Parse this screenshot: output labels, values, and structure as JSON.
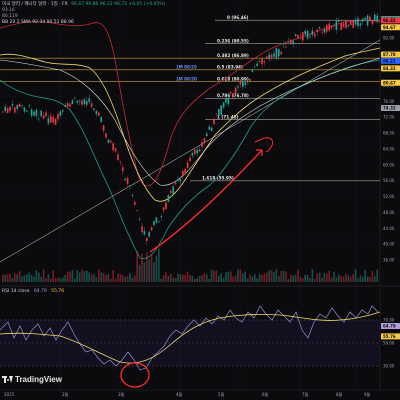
{
  "header": {
    "line1": "미국 달러 / 캐나다 달러 · 1일 · FX",
    "line1_values": "96.67  96.86  96.22  96.72  +0.05 (+0.05%)",
    "line2": "93.16",
    "line3": "80.119",
    "line4": "BB 20 2 SMA  92.34  90.51  88.96"
  },
  "fib_levels": [
    {
      "label": "0 (96.46)",
      "price": 96.46
    },
    {
      "label": "0.236 (90.55)",
      "price": 90.55
    },
    {
      "label": "0.382 (86.89)",
      "price": 86.89
    },
    {
      "label": "0.5 (83.94)",
      "price": 83.94
    },
    {
      "label": "0.618 (80.99)",
      "price": 80.99
    },
    {
      "label": "0.786 (76.78)",
      "price": 76.78
    },
    {
      "label": "1 (71.42)",
      "price": 71.42
    },
    {
      "label": "1.618 (55.95)",
      "price": 55.95
    }
  ],
  "fib_side_tags": [
    "1M 80/20",
    "1M 80/20"
  ],
  "price_axis": {
    "ticks": [
      "96.00",
      "92.00",
      "88.00",
      "84.00",
      "80.00",
      "76.00",
      "72.00",
      "68.00",
      "64.00",
      "60.00",
      "56.00",
      "52.00",
      "48.00",
      "44.00",
      "40.00",
      "36.00"
    ],
    "tags": [
      {
        "text": "96.76",
        "color": "#26a69a"
      },
      {
        "text": "96.42",
        "color": "#f23645"
      },
      {
        "text": "94.67",
        "color": "#f7c948"
      },
      {
        "text": "87.78",
        "color": "#f7c948"
      },
      {
        "text": "86.21",
        "color": "#2962ff"
      },
      {
        "text": "84.32",
        "color": "#f7c948"
      },
      {
        "text": "80.67",
        "color": "#f7c948"
      },
      {
        "text": "74.32",
        "color": "#9aa0aa"
      }
    ]
  },
  "rsi": {
    "title": "RSI 14 close",
    "value1": "64.79",
    "value2": "55.76",
    "tags": [
      {
        "text": "64.79",
        "color": "#b39ddb"
      },
      {
        "text": "55.76",
        "color": "#f7c948"
      }
    ],
    "ticks": [
      "70.00",
      "50.00",
      "30.00"
    ]
  },
  "time_axis": [
    "2025",
    "2월",
    "3월",
    "4월",
    "5월",
    "6월",
    "7월",
    "8월",
    "9월"
  ],
  "branding": {
    "name": "TradingView"
  },
  "colors": {
    "background": "#0b0b0d",
    "up": "#26a69a",
    "down": "#f23645",
    "bb_upper": "#f23645",
    "bb_lower": "#26a69a",
    "ma_yellow": "#f7e16b",
    "fib_yellow": "#f7c948",
    "rsi_line": "#9c8bd6",
    "annotation": "#ff2a2a"
  }
}
